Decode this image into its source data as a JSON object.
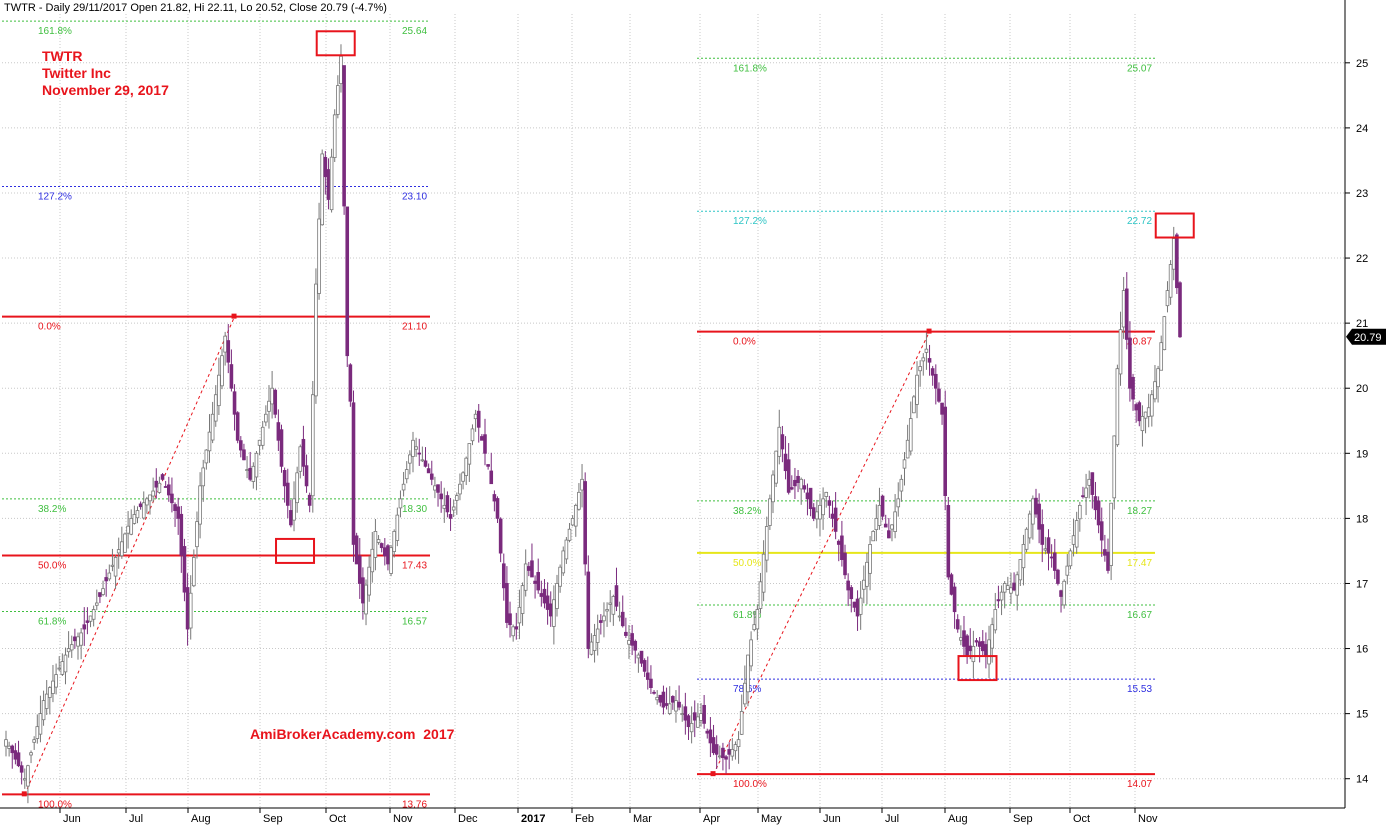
{
  "header": {
    "title": "TWTR - Daily 29/11/2017 Open 21.82, Hi 22.11, Lo 20.52, Close 20.79 (-4.7%)"
  },
  "annotation": {
    "lines": [
      "TWTR",
      "Twitter Inc",
      "November 29, 2017"
    ],
    "watermark": "AmiBrokerAcademy.com  2017",
    "color": "#e8141c"
  },
  "last_price_label": "20.79",
  "chart_data": {
    "type": "candlestick",
    "title": "TWTR - Daily 29/11/2017 Open 21.82, Hi 22.11, Lo 20.52, Close 20.79 (-4.7%)",
    "ylim": [
      13.6,
      25.8
    ],
    "y_ticks": [
      14,
      15,
      16,
      17,
      18,
      19,
      20,
      21,
      22,
      23,
      24,
      25
    ],
    "grid": true,
    "x_tick_labels": [
      "Jun",
      "Jul",
      "Aug",
      "Sep",
      "Oct",
      "Nov",
      "Dec",
      "2017",
      "Feb",
      "Mar",
      "Apr",
      "May",
      "Jun",
      "Jul",
      "Aug",
      "Sep",
      "Oct",
      "Nov"
    ],
    "up_color": "#777777",
    "down_color": "#7a2a7d",
    "price_path": [
      {
        "i": 0,
        "p": 14.6
      },
      {
        "i": 6,
        "p": 14.0
      },
      {
        "i": 12,
        "p": 15.2
      },
      {
        "i": 20,
        "p": 16.0
      },
      {
        "i": 25,
        "p": 16.3
      },
      {
        "i": 30,
        "p": 16.8
      },
      {
        "i": 35,
        "p": 17.4
      },
      {
        "i": 40,
        "p": 18.0
      },
      {
        "i": 45,
        "p": 18.3
      },
      {
        "i": 50,
        "p": 18.6
      },
      {
        "i": 55,
        "p": 18.0
      },
      {
        "i": 58,
        "p": 16.3
      },
      {
        "i": 62,
        "p": 18.5
      },
      {
        "i": 66,
        "p": 19.6
      },
      {
        "i": 70,
        "p": 20.8
      },
      {
        "i": 74,
        "p": 19.2
      },
      {
        "i": 78,
        "p": 18.6
      },
      {
        "i": 82,
        "p": 19.4
      },
      {
        "i": 85,
        "p": 20.0
      },
      {
        "i": 88,
        "p": 18.8
      },
      {
        "i": 91,
        "p": 17.9
      },
      {
        "i": 94,
        "p": 19.1
      },
      {
        "i": 97,
        "p": 18.2
      },
      {
        "i": 99,
        "p": 21.6
      },
      {
        "i": 101,
        "p": 23.6
      },
      {
        "i": 103,
        "p": 22.9
      },
      {
        "i": 105,
        "p": 24.2
      },
      {
        "i": 107,
        "p": 25.1
      },
      {
        "i": 109,
        "p": 20.5
      },
      {
        "i": 110,
        "p": 19.8
      },
      {
        "i": 111,
        "p": 17.6
      },
      {
        "i": 114,
        "p": 16.7
      },
      {
        "i": 118,
        "p": 17.8
      },
      {
        "i": 122,
        "p": 17.3
      },
      {
        "i": 126,
        "p": 18.3
      },
      {
        "i": 130,
        "p": 19.2
      },
      {
        "i": 134,
        "p": 18.8
      },
      {
        "i": 138,
        "p": 18.4
      },
      {
        "i": 142,
        "p": 18.0
      },
      {
        "i": 146,
        "p": 18.7
      },
      {
        "i": 150,
        "p": 19.6
      },
      {
        "i": 154,
        "p": 18.8
      },
      {
        "i": 157,
        "p": 18.0
      },
      {
        "i": 160,
        "p": 16.4
      },
      {
        "i": 163,
        "p": 16.3
      },
      {
        "i": 166,
        "p": 17.3
      },
      {
        "i": 170,
        "p": 16.9
      },
      {
        "i": 174,
        "p": 16.5
      },
      {
        "i": 178,
        "p": 17.5
      },
      {
        "i": 181,
        "p": 18.0
      },
      {
        "i": 184,
        "p": 18.6
      },
      {
        "i": 186,
        "p": 16.0
      },
      {
        "i": 190,
        "p": 16.4
      },
      {
        "i": 194,
        "p": 16.8
      },
      {
        "i": 198,
        "p": 16.2
      },
      {
        "i": 202,
        "p": 15.9
      },
      {
        "i": 206,
        "p": 15.4
      },
      {
        "i": 210,
        "p": 15.1
      },
      {
        "i": 214,
        "p": 15.2
      },
      {
        "i": 218,
        "p": 14.8
      },
      {
        "i": 222,
        "p": 15.0
      },
      {
        "i": 226,
        "p": 14.4
      },
      {
        "i": 230,
        "p": 14.3
      },
      {
        "i": 234,
        "p": 14.6
      },
      {
        "i": 237,
        "p": 15.9
      },
      {
        "i": 240,
        "p": 16.6
      },
      {
        "i": 244,
        "p": 18.3
      },
      {
        "i": 247,
        "p": 19.4
      },
      {
        "i": 250,
        "p": 18.4
      },
      {
        "i": 254,
        "p": 18.6
      },
      {
        "i": 258,
        "p": 18.0
      },
      {
        "i": 262,
        "p": 18.4
      },
      {
        "i": 266,
        "p": 17.6
      },
      {
        "i": 269,
        "p": 16.9
      },
      {
        "i": 272,
        "p": 16.5
      },
      {
        "i": 276,
        "p": 17.6
      },
      {
        "i": 279,
        "p": 18.2
      },
      {
        "i": 282,
        "p": 17.7
      },
      {
        "i": 285,
        "p": 18.3
      },
      {
        "i": 288,
        "p": 19.2
      },
      {
        "i": 291,
        "p": 20.2
      },
      {
        "i": 294,
        "p": 20.6
      },
      {
        "i": 297,
        "p": 20.0
      },
      {
        "i": 299,
        "p": 19.6
      },
      {
        "i": 301,
        "p": 17.1
      },
      {
        "i": 304,
        "p": 16.3
      },
      {
        "i": 307,
        "p": 15.9
      },
      {
        "i": 310,
        "p": 16.1
      },
      {
        "i": 313,
        "p": 15.9
      },
      {
        "i": 316,
        "p": 16.6
      },
      {
        "i": 319,
        "p": 17.0
      },
      {
        "i": 322,
        "p": 16.9
      },
      {
        "i": 325,
        "p": 17.6
      },
      {
        "i": 328,
        "p": 18.3
      },
      {
        "i": 331,
        "p": 17.6
      },
      {
        "i": 334,
        "p": 17.4
      },
      {
        "i": 337,
        "p": 16.8
      },
      {
        "i": 340,
        "p": 17.5
      },
      {
        "i": 343,
        "p": 18.2
      },
      {
        "i": 346,
        "p": 18.6
      },
      {
        "i": 349,
        "p": 17.9
      },
      {
        "i": 352,
        "p": 17.2
      },
      {
        "i": 355,
        "p": 20.3
      },
      {
        "i": 357,
        "p": 21.5
      },
      {
        "i": 359,
        "p": 20.0
      },
      {
        "i": 362,
        "p": 19.5
      },
      {
        "i": 365,
        "p": 19.7
      },
      {
        "i": 368,
        "p": 20.3
      },
      {
        "i": 371,
        "p": 21.5
      },
      {
        "i": 373,
        "p": 22.3
      },
      {
        "i": 375,
        "p": 20.79
      }
    ],
    "fibonacci_sets": [
      {
        "levels": [
          {
            "label": "161.8%",
            "value": 25.64,
            "value_label": "25.64",
            "color": "#3fbf3f",
            "style": "dotted"
          },
          {
            "label": "127.2%",
            "value": 23.1,
            "value_label": "23.10",
            "color": "#2e2ee0",
            "style": "dotted"
          },
          {
            "label": "0.0%",
            "value": 21.1,
            "value_label": "21.10",
            "color": "#e8141c",
            "style": "solid"
          },
          {
            "label": "38.2%",
            "value": 18.3,
            "value_label": "18.30",
            "color": "#3fbf3f",
            "style": "dotted"
          },
          {
            "label": "50.0%",
            "value": 17.43,
            "value_label": "17.43",
            "color": "#e8141c",
            "style": "solid"
          },
          {
            "label": "61.8%",
            "value": 16.57,
            "value_label": "16.57",
            "color": "#3fbf3f",
            "style": "dotted"
          },
          {
            "label": "100.0%",
            "value": 13.76,
            "value_label": "13.76",
            "color": "#e8141c",
            "style": "solid"
          }
        ],
        "swing_low": {
          "date_index": 6,
          "value": 13.76
        },
        "swing_high": {
          "date_index": 73,
          "value": 21.1
        }
      },
      {
        "levels": [
          {
            "label": "161.8%",
            "value": 25.07,
            "value_label": "25.07",
            "color": "#3fbf3f",
            "style": "dotted"
          },
          {
            "label": "127.2%",
            "value": 22.72,
            "value_label": "22.72",
            "color": "#2ec5c5",
            "style": "dotted"
          },
          {
            "label": "0.0%",
            "value": 20.87,
            "value_label": "20.87",
            "color": "#e8141c",
            "style": "solid"
          },
          {
            "label": "38.2%",
            "value": 18.27,
            "value_label": "18.27",
            "color": "#3fbf3f",
            "style": "dotted"
          },
          {
            "label": "50.0%",
            "value": 17.47,
            "value_label": "17.47",
            "color": "#e6e61a",
            "style": "solid"
          },
          {
            "label": "61.8%",
            "value": 16.67,
            "value_label": "16.67",
            "color": "#3fbf3f",
            "style": "dotted"
          },
          {
            "label": "78.6%",
            "value": 15.53,
            "value_label": "15.53",
            "color": "#2e2ee0",
            "style": "dotted"
          },
          {
            "label": "100.0%",
            "value": 14.07,
            "value_label": "14.07",
            "color": "#e8141c",
            "style": "solid"
          }
        ],
        "swing_low": {
          "date_index": 226,
          "value": 14.07
        },
        "swing_high": {
          "date_index": 295,
          "value": 20.87
        }
      }
    ],
    "highlight_boxes": [
      {
        "date_index": 105,
        "value": 25.3
      },
      {
        "date_index": 92,
        "value": 17.5
      },
      {
        "date_index": 310,
        "value": 15.7
      },
      {
        "date_index": 373,
        "value": 22.5
      }
    ]
  }
}
